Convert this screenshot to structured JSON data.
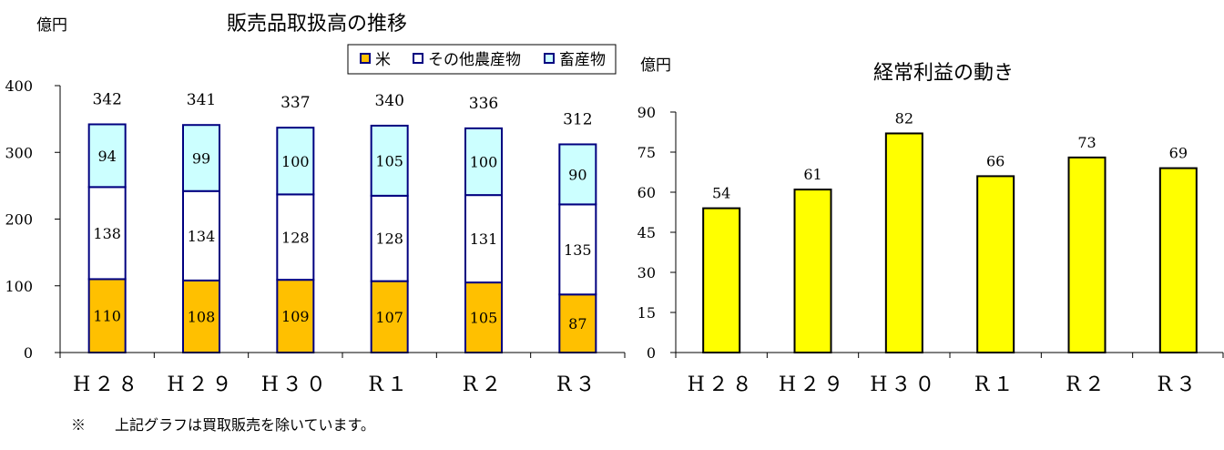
{
  "chart_data": [
    {
      "type": "bar",
      "stacked": true,
      "title": "販売品取扱高の推移",
      "ylabel": "億円",
      "ylim": [
        0,
        400
      ],
      "yticks": [
        0,
        100,
        200,
        300,
        400
      ],
      "categories": [
        "H２８",
        "H２９",
        "H３０",
        "R１",
        "R２",
        "R３"
      ],
      "series": [
        {
          "name": "米",
          "color": "#FFC000",
          "values": [
            110,
            108,
            109,
            107,
            105,
            87
          ]
        },
        {
          "name": "その他農産物",
          "color": "#FFFFFF",
          "values": [
            138,
            134,
            128,
            128,
            131,
            135
          ]
        },
        {
          "name": "畜産物",
          "color": "#CCFFFF",
          "values": [
            94,
            99,
            100,
            105,
            100,
            90
          ]
        }
      ],
      "totals": [
        342,
        341,
        337,
        340,
        336,
        312
      ],
      "legend": "top-right",
      "bar_outline_color": "#000080"
    },
    {
      "type": "bar",
      "title": "経常利益の動き",
      "ylabel": "億円",
      "ylim": [
        0,
        90
      ],
      "yticks": [
        0,
        15,
        30,
        45,
        60,
        75,
        90
      ],
      "categories": [
        "H２８",
        "H２９",
        "H３０",
        "R１",
        "R２",
        "R３"
      ],
      "values": [
        54,
        61,
        82,
        66,
        73,
        69
      ],
      "color": "#FFFF00"
    }
  ],
  "footnote": "※　　上記グラフは買取販売を除いています。"
}
